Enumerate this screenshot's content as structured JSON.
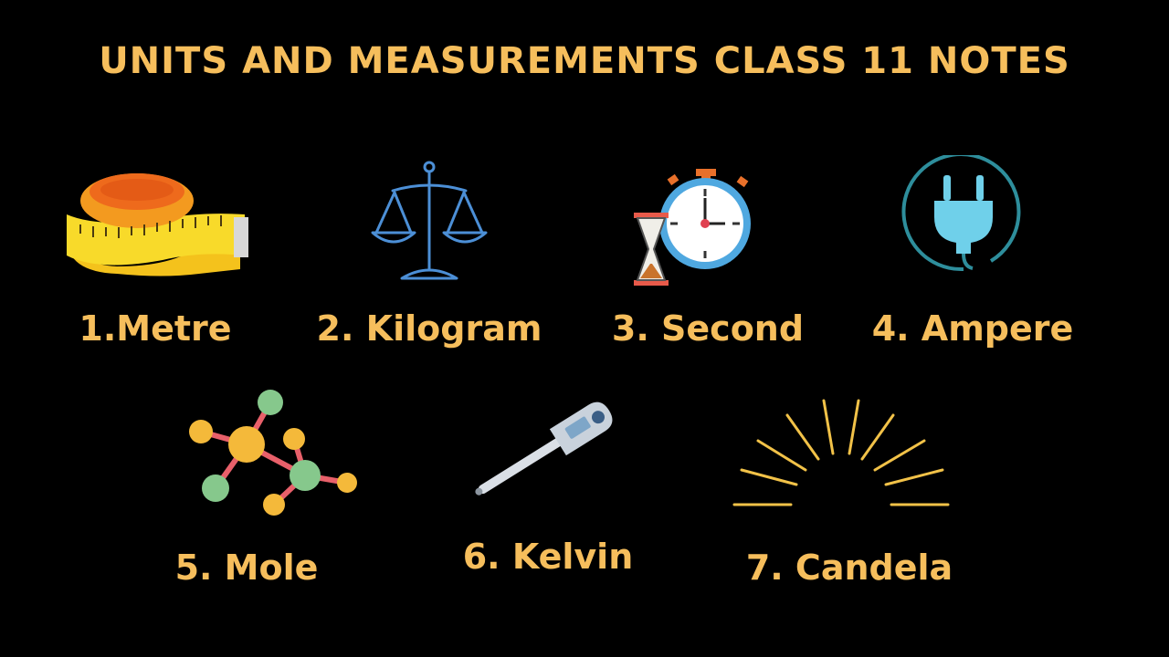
{
  "title": "UNITS AND MEASUREMENTS CLASS 11 NOTES",
  "colors": {
    "background": "#000000",
    "accent": "#F6BE5C"
  },
  "units": [
    {
      "label": "1.Metre",
      "icon": "measuring-tape-icon"
    },
    {
      "label": "2. Kilogram",
      "icon": "balance-scale-icon"
    },
    {
      "label": "3. Second",
      "icon": "stopwatch-hourglass-icon"
    },
    {
      "label": "4. Ampere",
      "icon": "electric-plug-icon"
    },
    {
      "label": "5. Mole",
      "icon": "molecule-icon"
    },
    {
      "label": "6. Kelvin",
      "icon": "thermometer-icon"
    },
    {
      "label": "7. Candela",
      "icon": "light-rays-icon"
    }
  ]
}
